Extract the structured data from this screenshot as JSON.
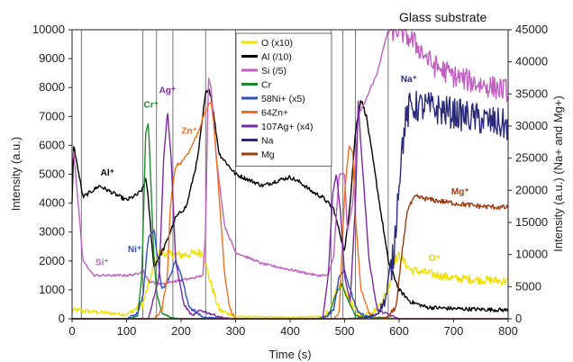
{
  "chart_data": {
    "type": "line",
    "title": "Glass substrate",
    "xlabel": "Time (s)",
    "ylabel": "Intensity (a.u.)",
    "y2label": "Intensity (a.u.) (Na+ and Mg+)",
    "xlim": [
      0,
      800
    ],
    "ylim": [
      0,
      10000
    ],
    "y2lim": [
      0,
      45000
    ],
    "xticks": [
      0,
      100,
      200,
      300,
      400,
      500,
      600,
      700,
      800
    ],
    "yticks": [
      0,
      1000,
      2000,
      3000,
      4000,
      5000,
      6000,
      7000,
      8000,
      9000,
      10000
    ],
    "y2ticks": [
      0,
      5000,
      10000,
      15000,
      20000,
      25000,
      30000,
      35000,
      40000,
      45000
    ],
    "vertical_lines": [
      17,
      130,
      155,
      185,
      245,
      300,
      475,
      497,
      520,
      580
    ],
    "legend_position": "top-center",
    "legend": [
      {
        "label": "O (x10)",
        "color": "#f0e000"
      },
      {
        "label": "Al (/10)",
        "color": "#000000"
      },
      {
        "label": "Si (/5)",
        "color": "#c060c0"
      },
      {
        "label": "Cr",
        "color": "#1e8a2e"
      },
      {
        "label": "58Ni+ (x5)",
        "color": "#3050c0"
      },
      {
        "label": "64Zn+",
        "color": "#f07020"
      },
      {
        "label": "107Ag+ (x4)",
        "color": "#7a2aa0"
      },
      {
        "label": "Na",
        "color": "#2a2a7a"
      },
      {
        "label": "Mg",
        "color": "#a03a10"
      }
    ],
    "annotations": [
      {
        "text": "Al⁺",
        "x": 65,
        "y": 4950,
        "color": "#000000"
      },
      {
        "text": "Cr⁺",
        "x": 145,
        "y": 7300,
        "color": "#1e8a2e"
      },
      {
        "text": "Ag⁺",
        "x": 175,
        "y": 7800,
        "color": "#7a2aa0"
      },
      {
        "text": "Zn⁺",
        "x": 215,
        "y": 6400,
        "color": "#f07020"
      },
      {
        "text": "Ni⁺",
        "x": 115,
        "y": 2300,
        "color": "#3050c0"
      },
      {
        "text": "Si⁺",
        "x": 55,
        "y": 1850,
        "color": "#c060c0"
      },
      {
        "text": "Na⁺",
        "x": 618,
        "y": 8200,
        "color": "#2a2a7a"
      },
      {
        "text": "Mg⁺",
        "x": 712,
        "y": 4300,
        "color": "#a03a10"
      },
      {
        "text": "O⁺",
        "x": 665,
        "y": 2000,
        "color": "#e0d000"
      }
    ],
    "series": [
      {
        "name": "O (x10)",
        "color": "#f0e000",
        "axis": "left",
        "noise": 150,
        "x": [
          0,
          100,
          130,
          150,
          160,
          200,
          240,
          250,
          270,
          300,
          400,
          460,
          475,
          490,
          500,
          515,
          530,
          560,
          580,
          590,
          600,
          620,
          700,
          800
        ],
        "y": [
          300,
          150,
          500,
          1800,
          2300,
          2200,
          2300,
          1500,
          300,
          80,
          50,
          80,
          350,
          1200,
          1000,
          400,
          100,
          350,
          1000,
          2000,
          2200,
          1700,
          1400,
          1300
        ]
      },
      {
        "name": "Al (/10)",
        "color": "#000000",
        "axis": "left",
        "noise": 70,
        "x": [
          0,
          3,
          20,
          50,
          80,
          100,
          120,
          130,
          135,
          140,
          150,
          170,
          190,
          210,
          230,
          245,
          250,
          255,
          270,
          300,
          350,
          380,
          400,
          420,
          440,
          460,
          480,
          500,
          510,
          520,
          530,
          540,
          560,
          580,
          600,
          620,
          650,
          700,
          800
        ],
        "y": [
          4000,
          6000,
          4200,
          4600,
          4300,
          4100,
          4300,
          4500,
          4900,
          4100,
          1800,
          2500,
          3500,
          3900,
          5500,
          7800,
          8000,
          7700,
          5700,
          5000,
          4600,
          4800,
          4900,
          4700,
          4400,
          4200,
          3800,
          2300,
          4000,
          6500,
          7600,
          7000,
          4500,
          2000,
          1000,
          600,
          400,
          350,
          300
        ]
      },
      {
        "name": "Si (/5)",
        "color": "#c060c0",
        "axis": "left",
        "noise": 40,
        "x": [
          0,
          3,
          20,
          40,
          100,
          120,
          130,
          140,
          160,
          190,
          220,
          240,
          245,
          250,
          255,
          265,
          280,
          300,
          350,
          400,
          450,
          470,
          480,
          490,
          500,
          505,
          515,
          525,
          560,
          580
        ],
        "y": [
          5500,
          5800,
          2000,
          1500,
          1500,
          1550,
          1700,
          1300,
          1200,
          1300,
          1400,
          1500,
          3000,
          8400,
          8000,
          5500,
          3200,
          2300,
          1900,
          1700,
          1500,
          1500,
          2200,
          5000,
          5000,
          3000,
          4000,
          7000,
          8500,
          10000
        ]
      },
      {
        "name": "Cr",
        "color": "#1e8a2e",
        "axis": "left",
        "noise": 30,
        "x": [
          0,
          100,
          120,
          128,
          135,
          140,
          145,
          150,
          155,
          165,
          180,
          200,
          300,
          450,
          470,
          485,
          495,
          505,
          520,
          600,
          800
        ],
        "y": [
          0,
          0,
          80,
          1500,
          6400,
          6800,
          4500,
          2200,
          900,
          200,
          50,
          0,
          0,
          0,
          100,
          900,
          1200,
          700,
          100,
          0,
          0
        ]
      },
      {
        "name": "58Ni+ (x5)",
        "color": "#3050c0",
        "axis": "left",
        "noise": 60,
        "x": [
          0,
          100,
          120,
          130,
          140,
          150,
          165,
          180,
          190,
          200,
          215,
          240,
          300,
          460,
          480,
          490,
          500,
          510,
          525,
          550,
          600,
          800
        ],
        "y": [
          0,
          0,
          200,
          800,
          2800,
          3100,
          1000,
          1500,
          2000,
          1500,
          400,
          50,
          0,
          0,
          300,
          1500,
          1700,
          1000,
          200,
          20,
          0,
          0
        ]
      },
      {
        "name": "64Zn+",
        "color": "#f07020",
        "axis": "left",
        "noise": 60,
        "x": [
          0,
          150,
          165,
          175,
          180,
          190,
          200,
          215,
          230,
          245,
          255,
          260,
          270,
          280,
          290,
          300,
          480,
          490,
          500,
          508,
          515,
          520,
          530,
          545,
          560,
          600,
          800
        ],
        "y": [
          0,
          0,
          300,
          1500,
          3800,
          5300,
          5400,
          5800,
          6400,
          7200,
          7500,
          6800,
          4200,
          1500,
          300,
          0,
          0,
          200,
          4300,
          6000,
          5700,
          3500,
          1000,
          200,
          0,
          0,
          0
        ]
      },
      {
        "name": "107Ag+ (x4)",
        "color": "#7a2aa0",
        "axis": "left",
        "noise": 40,
        "x": [
          0,
          140,
          160,
          168,
          175,
          182,
          190,
          205,
          220,
          235,
          250,
          265,
          280,
          300,
          460,
          470,
          478,
          485,
          492,
          500,
          510,
          520,
          525,
          530,
          545,
          560,
          600,
          800
        ],
        "y": [
          0,
          0,
          1500,
          5500,
          7200,
          5500,
          2000,
          500,
          100,
          300,
          200,
          100,
          30,
          0,
          0,
          1500,
          4300,
          5000,
          3800,
          1500,
          600,
          4000,
          7500,
          6000,
          2000,
          300,
          0,
          0
        ]
      },
      {
        "name": "Na",
        "color": "#2a2a7a",
        "axis": "right",
        "noise": 2500,
        "x": [
          0,
          500,
          540,
          560,
          575,
          590,
          600,
          610,
          620,
          650,
          700,
          750,
          800
        ],
        "y": [
          0,
          0,
          150,
          800,
          3000,
          10000,
          22000,
          30000,
          33000,
          33000,
          32000,
          31000,
          30000
        ]
      },
      {
        "name": "Mg",
        "color": "#a03a10",
        "axis": "right",
        "noise": 400,
        "x": [
          0,
          560,
          580,
          595,
          605,
          615,
          630,
          660,
          700,
          750,
          800
        ],
        "y": [
          0,
          0,
          300,
          2000,
          10000,
          17000,
          19000,
          18500,
          18000,
          17500,
          17300
        ]
      },
      {
        "name": "Si (/5) high",
        "color": "#c060c0",
        "axis": "left",
        "noise": 400,
        "x": [
          580,
          585,
          590,
          600,
          620,
          640,
          660,
          700,
          750,
          800
        ],
        "y": [
          10000,
          10000,
          10000,
          10000,
          9700,
          9300,
          8800,
          8400,
          8100,
          7900
        ]
      }
    ]
  }
}
